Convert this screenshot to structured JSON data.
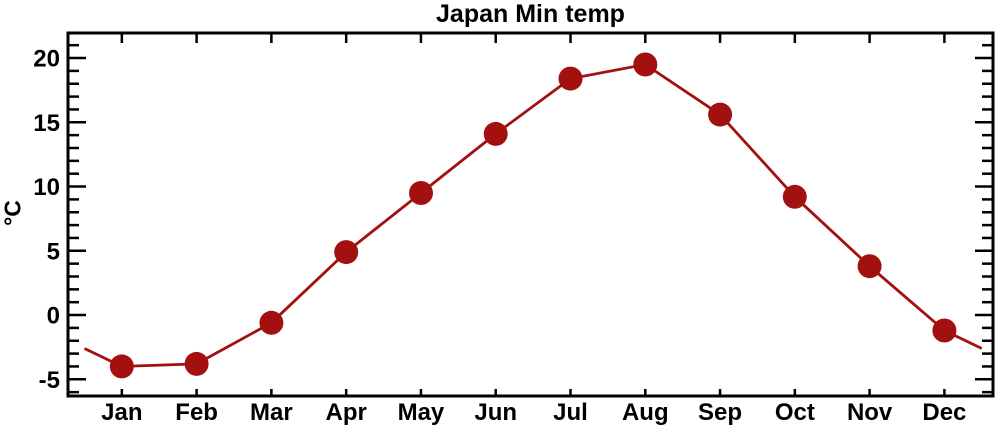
{
  "chart_data": {
    "type": "line",
    "title": "Japan Min temp",
    "ylabel": "°C",
    "xlabel": "",
    "categories": [
      "Jan",
      "Feb",
      "Mar",
      "Apr",
      "May",
      "Jun",
      "Jul",
      "Aug",
      "Sep",
      "Oct",
      "Nov",
      "Dec"
    ],
    "series": [
      {
        "name": "Japan Min temp",
        "values": [
          -4.0,
          -3.8,
          -0.6,
          4.9,
          9.5,
          14.1,
          18.4,
          19.5,
          15.6,
          9.2,
          3.8,
          -1.2
        ]
      }
    ],
    "edge_wrap_value": -2.6,
    "xlim": [
      0.28,
      12.65
    ],
    "ylim": [
      -6.3,
      21.95
    ],
    "y_major_ticks": [
      -5,
      0,
      5,
      10,
      15,
      20
    ],
    "y_minor_step": 1,
    "grid": false,
    "legend_position": "none",
    "marker": "filled-circle",
    "tick_style": "inward-all-four-sides",
    "colors": {
      "line": "#A21010",
      "marker": "#A21010",
      "axis": "#000000",
      "text": "#000000",
      "background": "#FFFFFF"
    }
  }
}
